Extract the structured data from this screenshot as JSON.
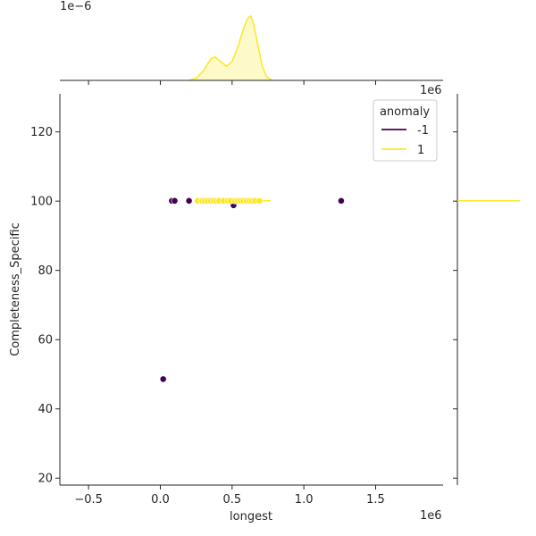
{
  "chart_data": {
    "type": "scatter",
    "xlabel": "longest",
    "ylabel": "Completeness_Specific",
    "x_offset_text": "1e6",
    "top_offset_text": "1e−6",
    "right_offset_text": "1e6",
    "xlim": [
      -0.7,
      1.97
    ],
    "ylim": [
      18,
      131
    ],
    "xticks": [
      -0.5,
      0.0,
      0.5,
      1.0,
      1.5
    ],
    "xtick_labels": [
      "−0.5",
      "0.0",
      "0.5",
      "1.0",
      "1.5"
    ],
    "yticks": [
      20,
      40,
      60,
      80,
      100,
      120
    ],
    "ytick_labels": [
      "20",
      "40",
      "60",
      "80",
      "100",
      "120"
    ],
    "legend": {
      "title": "anomaly",
      "placement": "top-right",
      "entries": [
        {
          "label": "-1",
          "color": "#440154"
        },
        {
          "label": "1",
          "color": "#fde725"
        }
      ]
    },
    "series": [
      {
        "name": "-1",
        "color": "#440154",
        "points": [
          {
            "x": 0.08,
            "y": 100.1
          },
          {
            "x": 0.1,
            "y": 100.1
          },
          {
            "x": 0.2,
            "y": 100.1
          },
          {
            "x": 0.51,
            "y": 98.8
          },
          {
            "x": 1.26,
            "y": 100.1
          },
          {
            "x": 0.02,
            "y": 48.6
          }
        ]
      },
      {
        "name": "1",
        "color": "#fde725",
        "points": [
          {
            "x": 0.26,
            "y": 100.1
          },
          {
            "x": 0.29,
            "y": 100.1
          },
          {
            "x": 0.31,
            "y": 100.1
          },
          {
            "x": 0.33,
            "y": 100.1
          },
          {
            "x": 0.35,
            "y": 100.1
          },
          {
            "x": 0.37,
            "y": 100.1
          },
          {
            "x": 0.39,
            "y": 100.1
          },
          {
            "x": 0.41,
            "y": 100.1
          },
          {
            "x": 0.44,
            "y": 100.1
          },
          {
            "x": 0.47,
            "y": 100.1
          },
          {
            "x": 0.49,
            "y": 100.1
          },
          {
            "x": 0.52,
            "y": 100.1
          },
          {
            "x": 0.54,
            "y": 100.1
          },
          {
            "x": 0.56,
            "y": 100.1
          },
          {
            "x": 0.58,
            "y": 100.1
          },
          {
            "x": 0.6,
            "y": 100.1
          },
          {
            "x": 0.62,
            "y": 100.1
          },
          {
            "x": 0.64,
            "y": 100.1
          },
          {
            "x": 0.66,
            "y": 100.1
          },
          {
            "x": 0.69,
            "y": 100.1
          }
        ]
      }
    ],
    "top_density": {
      "fill_color": "#fde725",
      "x": [
        0.2,
        0.25,
        0.3,
        0.35,
        0.38,
        0.42,
        0.46,
        0.5,
        0.54,
        0.58,
        0.61,
        0.63,
        0.65,
        0.68,
        0.71,
        0.74,
        0.78
      ],
      "y": [
        0.0,
        0.05,
        0.2,
        0.45,
        0.5,
        0.4,
        0.3,
        0.4,
        0.7,
        1.1,
        1.32,
        1.36,
        1.2,
        0.75,
        0.3,
        0.08,
        0.0
      ]
    },
    "right_density": {
      "color": "#fde725",
      "y": 100.1
    }
  }
}
